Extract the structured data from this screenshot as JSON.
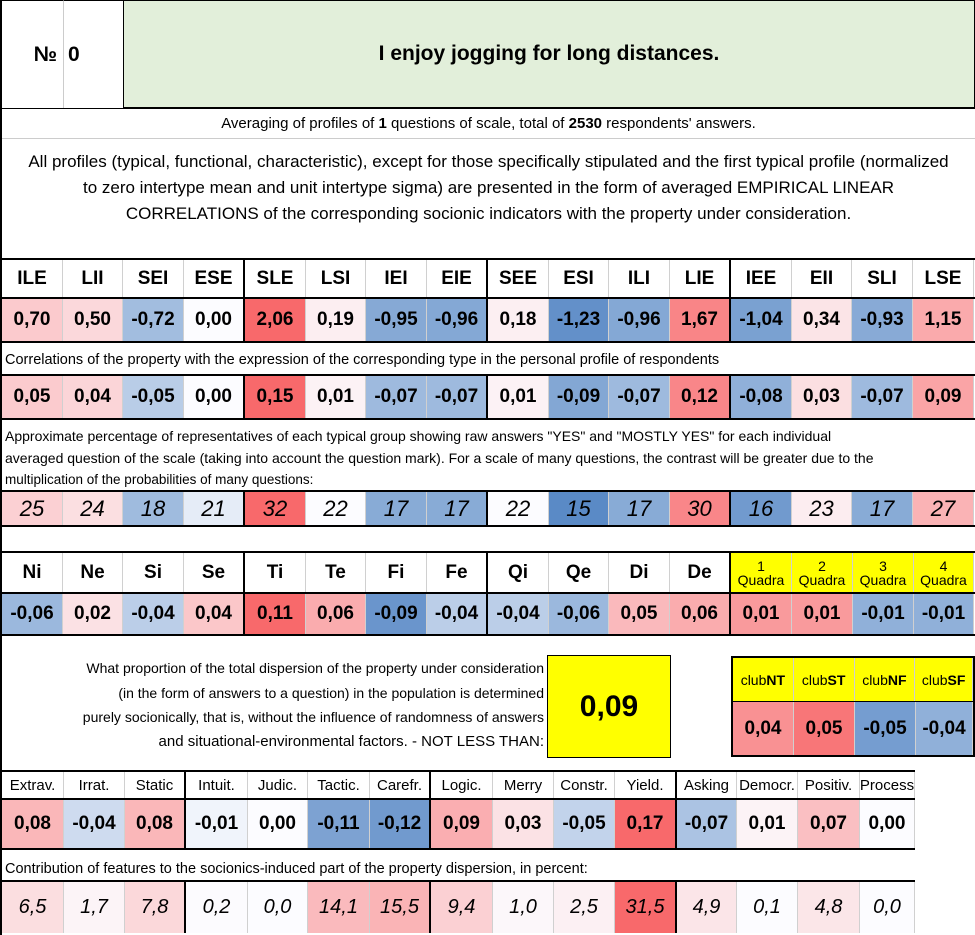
{
  "header": {
    "number_label": "№",
    "number": "0",
    "question": "I enjoy jogging for long distances."
  },
  "averaging": {
    "prefix": "Averaging of profiles of ",
    "questions": "1",
    "middle": " questions of scale, total of ",
    "total": "2530",
    "suffix": " respondents' answers."
  },
  "intro": "All profiles (typical, functional, characteristic), except for those specifically stipulated and the first typical profile (normalized to zero intertype mean and unit intertype sigma) are presented in the form of averaged EMPIRICAL LINEAR CORRELATIONS of the corresponding socionic indicators with the property under consideration.",
  "types": [
    "ILE",
    "LII",
    "SEI",
    "ESE",
    "SLE",
    "LSI",
    "IEI",
    "EIE",
    "SEE",
    "ESI",
    "ILI",
    "LIE",
    "IEE",
    "EII",
    "SLI",
    "LSE"
  ],
  "typical_profile": [
    "0,70",
    "0,50",
    "-0,72",
    "0,00",
    "2,06",
    "0,19",
    "-0,95",
    "-0,96",
    "0,18",
    "-1,23",
    "-0,96",
    "1,67",
    "-1,04",
    "0,34",
    "-0,93",
    "1,15"
  ],
  "correlations_note": "Correlations of the property with the expression of the corresponding type in the personal profile of respondents",
  "correlations": [
    "0,05",
    "0,04",
    "-0,05",
    "0,00",
    "0,15",
    "0,01",
    "-0,07",
    "-0,07",
    "0,01",
    "-0,09",
    "-0,07",
    "0,12",
    "-0,08",
    "0,03",
    "-0,07",
    "0,09"
  ],
  "percentage_note_lines": [
    "Approximate percentage of representatives of each typical group showing raw answers \"YES\" and \"MOSTLY YES\" for each individual",
    "averaged question of the scale (taking into account the question mark). For a scale of many questions, the contrast will be greater due to the",
    "multiplication of the probabilities of many questions:"
  ],
  "percentages": [
    "25",
    "24",
    "18",
    "21",
    "32",
    "22",
    "17",
    "17",
    "22",
    "15",
    "17",
    "30",
    "16",
    "23",
    "17",
    "27"
  ],
  "functions": [
    "Ni",
    "Ne",
    "Si",
    "Se",
    "Ti",
    "Te",
    "Fi",
    "Fe",
    "Qi",
    "Qe",
    "Di",
    "De"
  ],
  "function_values": [
    "-0,06",
    "0,02",
    "-0,04",
    "0,04",
    "0,11",
    "0,06",
    "-0,09",
    "-0,04",
    "-0,04",
    "-0,06",
    "0,05",
    "0,06"
  ],
  "quadras": [
    {
      "num": "1",
      "label": "Quadra"
    },
    {
      "num": "2",
      "label": "Quadra"
    },
    {
      "num": "3",
      "label": "Quadra"
    },
    {
      "num": "4",
      "label": "Quadra"
    }
  ],
  "quadra_values": [
    "0,01",
    "0,01",
    "-0,01",
    "-0,01"
  ],
  "dispersion_lines": [
    "What proportion of the total dispersion of the property under consideration",
    "(in the form of answers to a question) in the population is determined",
    "purely socionically, that is, without the influence of randomness of answers",
    "and situational-environmental factors. - NOT LESS THAN:"
  ],
  "dispersion_value": "0,09",
  "clubs": [
    {
      "pre": "club",
      "bold": "NT"
    },
    {
      "pre": "club",
      "bold": "ST"
    },
    {
      "pre": "club",
      "bold": "NF"
    },
    {
      "pre": "club",
      "bold": "SF"
    }
  ],
  "club_values": [
    "0,04",
    "0,05",
    "-0,05",
    "-0,04"
  ],
  "traits": [
    "Extrav.",
    "Irrat.",
    "Static",
    "Intuit.",
    "Judic.",
    "Tactic.",
    "Carefr.",
    "Logic.",
    "Merry",
    "Constr.",
    "Yield.",
    "Asking",
    "Democr.",
    "Positiv.",
    "Process"
  ],
  "trait_values": [
    "0,08",
    "-0,04",
    "0,08",
    "-0,01",
    "0,00",
    "-0,11",
    "-0,12",
    "0,09",
    "0,03",
    "-0,05",
    "0,17",
    "-0,07",
    "0,01",
    "0,07",
    "0,00"
  ],
  "contribution_note": "Contribution of features to the socionics-induced part of the property dispersion, in percent:",
  "contributions": [
    "6,5",
    "1,7",
    "7,8",
    "0,2",
    "0,0",
    "14,1",
    "15,5",
    "9,4",
    "1,0",
    "2,5",
    "31,5",
    "4,9",
    "0,1",
    "4,8",
    "0,0"
  ],
  "colors": {
    "header_green": "#e2efda",
    "highlight": "#ffff00",
    "positive_max": "#f8696b",
    "negative_max": "#5a8ac6"
  }
}
